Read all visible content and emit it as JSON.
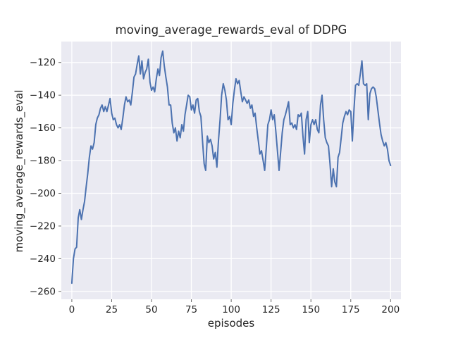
{
  "figure": {
    "background": "#ffffff"
  },
  "chart_data": {
    "type": "line",
    "title": "moving_average_rewards_eval of DDPG",
    "xlabel": "episodes",
    "ylabel": "moving_average_rewards_eval",
    "grid": true,
    "legend": "none",
    "x_ticks": [
      0,
      25,
      50,
      75,
      100,
      125,
      150,
      175,
      200
    ],
    "y_ticks": [
      -260,
      -240,
      -220,
      -200,
      -180,
      -160,
      -140,
      -120
    ],
    "xlim": [
      -6.6,
      206.5
    ],
    "ylim": [
      -264.8,
      -107.2
    ],
    "colors": {
      "line": "#4c72b0",
      "panel_background": "#eaeaf2",
      "gridline": "#ffffff",
      "text": "#262626",
      "tick": "#666666"
    },
    "series": [
      {
        "name": "moving_average_rewards_eval",
        "x_start": 0,
        "x_step": 1,
        "values": [
          -255,
          -240,
          -234,
          -233,
          -215,
          -210,
          -216,
          -210,
          -205,
          -196,
          -188,
          -178,
          -171,
          -173,
          -169,
          -158,
          -154,
          -152,
          -148,
          -146,
          -150,
          -147,
          -150,
          -146,
          -142,
          -151,
          -155,
          -154,
          -158,
          -160,
          -158,
          -161,
          -154,
          -146,
          -141,
          -144,
          -143,
          -146,
          -138,
          -129,
          -127,
          -121,
          -116,
          -127,
          -119,
          -130,
          -126,
          -124,
          -118,
          -132,
          -137,
          -135,
          -138,
          -130,
          -124,
          -128,
          -117,
          -113,
          -122,
          -129,
          -135,
          -146,
          -146,
          -157,
          -163,
          -160,
          -168,
          -162,
          -166,
          -158,
          -162,
          -152,
          -146,
          -140,
          -141,
          -149,
          -146,
          -151,
          -143,
          -142,
          -150,
          -153,
          -168,
          -182,
          -186,
          -165,
          -169,
          -167,
          -171,
          -179,
          -175,
          -184,
          -168,
          -155,
          -140,
          -133,
          -137,
          -143,
          -155,
          -153,
          -158,
          -145,
          -137,
          -130,
          -133,
          -131,
          -138,
          -144,
          -141,
          -143,
          -145,
          -143,
          -148,
          -146,
          -153,
          -151,
          -160,
          -168,
          -176,
          -174,
          -180,
          -186,
          -172,
          -158,
          -155,
          -149,
          -155,
          -152,
          -162,
          -174,
          -186,
          -175,
          -163,
          -155,
          -152,
          -148,
          -144,
          -158,
          -157,
          -160,
          -158,
          -161,
          -152,
          -153,
          -151,
          -165,
          -176,
          -155,
          -150,
          -169,
          -158,
          -155,
          -158,
          -155,
          -161,
          -163,
          -146,
          -140,
          -155,
          -166,
          -169,
          -171,
          -182,
          -196,
          -185,
          -193,
          -196,
          -178,
          -175,
          -166,
          -157,
          -153,
          -150,
          -152,
          -149,
          -150,
          -168,
          -149,
          -134,
          -133,
          -134,
          -127,
          -119,
          -133,
          -134,
          -133,
          -155,
          -139,
          -136,
          -135,
          -136,
          -141,
          -149,
          -157,
          -164,
          -168,
          -171,
          -169,
          -173,
          -180,
          -183
        ]
      }
    ]
  }
}
